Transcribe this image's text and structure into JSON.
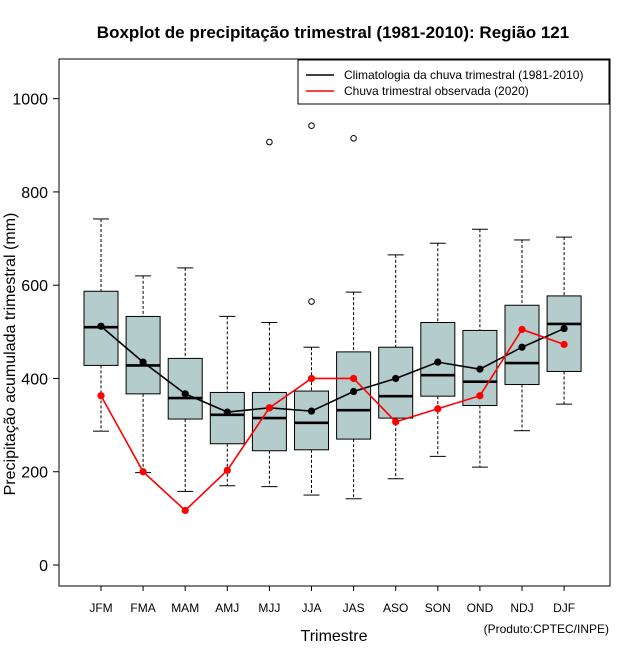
{
  "chart_data": {
    "type": "boxplot",
    "title": "Boxplot de precipitação trimestral (1981-2010): Região 121",
    "xlabel": "Trimestre",
    "ylabel": "Precipitação acumulada trimestral (mm)",
    "ylim": [
      -45,
      1085
    ],
    "yticks": [
      0,
      200,
      400,
      600,
      800,
      1000
    ],
    "categories": [
      "JFM",
      "FMA",
      "MAM",
      "AMJ",
      "MJJ",
      "JJA",
      "JAS",
      "ASO",
      "SON",
      "OND",
      "NDJ",
      "DJF"
    ],
    "boxes": [
      {
        "min": 287,
        "q1": 428,
        "median": 510,
        "q3": 587,
        "max": 742,
        "outliers": []
      },
      {
        "min": 198,
        "q1": 367,
        "median": 428,
        "q3": 533,
        "max": 620,
        "outliers": []
      },
      {
        "min": 158,
        "q1": 313,
        "median": 358,
        "q3": 443,
        "max": 637,
        "outliers": []
      },
      {
        "min": 170,
        "q1": 260,
        "median": 322,
        "q3": 370,
        "max": 533,
        "outliers": []
      },
      {
        "min": 168,
        "q1": 245,
        "median": 315,
        "q3": 370,
        "max": 520,
        "outliers": [
          907
        ]
      },
      {
        "min": 150,
        "q1": 247,
        "median": 305,
        "q3": 373,
        "max": 467,
        "outliers": [
          565,
          942
        ]
      },
      {
        "min": 142,
        "q1": 270,
        "median": 332,
        "q3": 457,
        "max": 585,
        "outliers": [
          915
        ]
      },
      {
        "min": 185,
        "q1": 315,
        "median": 362,
        "q3": 467,
        "max": 665,
        "outliers": []
      },
      {
        "min": 233,
        "q1": 362,
        "median": 407,
        "q3": 520,
        "max": 690,
        "outliers": []
      },
      {
        "min": 210,
        "q1": 342,
        "median": 393,
        "q3": 503,
        "max": 720,
        "outliers": []
      },
      {
        "min": 288,
        "q1": 387,
        "median": 433,
        "q3": 557,
        "max": 697,
        "outliers": []
      },
      {
        "min": 345,
        "q1": 415,
        "median": 517,
        "q3": 577,
        "max": 703,
        "outliers": []
      }
    ],
    "series": [
      {
        "name": "Climatologia da chuva trimestral (1981-2010)",
        "color": "#000000",
        "values": [
          512,
          435,
          367,
          328,
          337,
          330,
          372,
          400,
          435,
          420,
          467,
          507
        ]
      },
      {
        "name": "Chuva trimestral observada (2020)",
        "color": "#ff0000",
        "values": [
          363,
          200,
          117,
          203,
          337,
          400,
          400,
          307,
          335,
          363,
          505,
          473
        ]
      }
    ],
    "legend_position": "top-right",
    "box_fill": "#b5cccc",
    "credit": "(Produto:CPTEC/INPE)"
  }
}
